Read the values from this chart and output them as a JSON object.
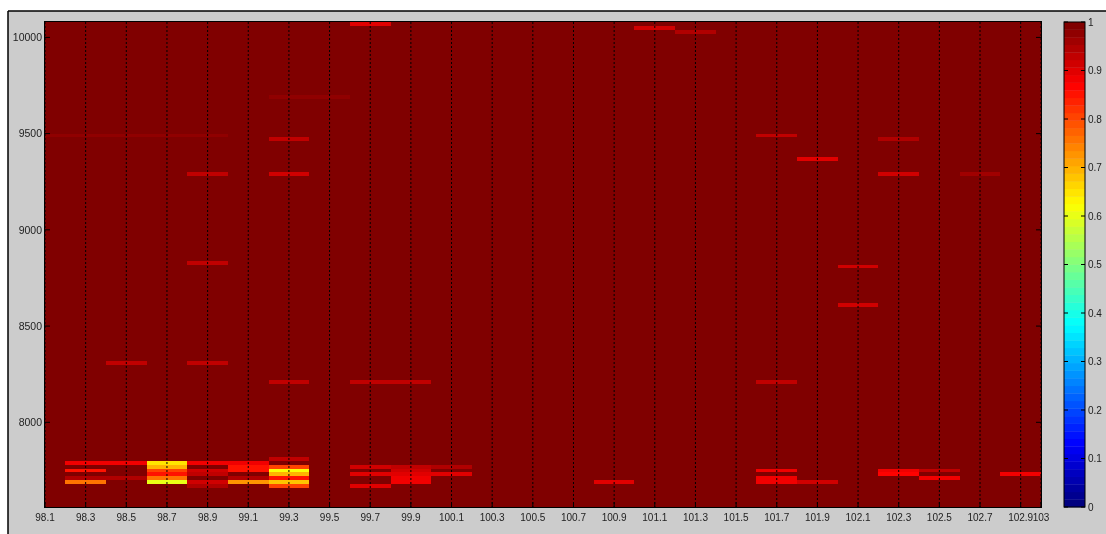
{
  "chart_data": {
    "type": "heatmap",
    "x": [
      98.1,
      98.3,
      98.5,
      98.7,
      98.9,
      99.1,
      99.3,
      99.5,
      99.7,
      99.9,
      100.1,
      100.3,
      100.5,
      100.7,
      100.9,
      101.1,
      101.3,
      101.5,
      101.7,
      101.9,
      102.1,
      102.3,
      102.5,
      102.7,
      102.9
    ],
    "xlim": [
      98.1,
      103
    ],
    "xticks": [
      98.1,
      98.3,
      98.5,
      98.7,
      98.9,
      99.1,
      99.3,
      99.5,
      99.7,
      99.9,
      100.1,
      100.3,
      100.5,
      100.7,
      100.9,
      101.1,
      101.3,
      101.5,
      101.7,
      101.9,
      102.1,
      102.3,
      102.5,
      102.7,
      102.9,
      103
    ],
    "ylim": [
      7560,
      10080
    ],
    "yticks": [
      8000,
      8500,
      9000,
      9500,
      10000
    ],
    "grid": "x",
    "clim": [
      0,
      1
    ],
    "cticks": [
      0,
      0.1,
      0.2,
      0.3,
      0.4,
      0.5,
      0.6,
      0.7,
      0.8,
      0.9,
      1
    ],
    "cells": [
      [
        1,
        1,
        1,
        1,
        1,
        1,
        1,
        1,
        0.9,
        1,
        1,
        1,
        1,
        1,
        1,
        1,
        1,
        1,
        1,
        1,
        1,
        1,
        1,
        1,
        1
      ],
      [
        1,
        1,
        1,
        1,
        1,
        1,
        1,
        1,
        1,
        1,
        1,
        1,
        1,
        1,
        1,
        0.92,
        1,
        1,
        1,
        1,
        1,
        1,
        1,
        1,
        1
      ],
      [
        1,
        1,
        1,
        1,
        1,
        1,
        1,
        1,
        1,
        1,
        1,
        1,
        1,
        1,
        1,
        1,
        0.95,
        1,
        1,
        1,
        1,
        1,
        1,
        1,
        1
      ],
      [
        1,
        1,
        1,
        1,
        1,
        1,
        1,
        1,
        1,
        1,
        1,
        1,
        1,
        1,
        1,
        1,
        1,
        1,
        1,
        1,
        1,
        1,
        1,
        1,
        1
      ],
      [
        1,
        1,
        1,
        1,
        1,
        1,
        1,
        1,
        1,
        1,
        1,
        1,
        1,
        1,
        1,
        1,
        1,
        1,
        1,
        1,
        1,
        1,
        1,
        1,
        1
      ],
      [
        1,
        1,
        1,
        1,
        1,
        1,
        1,
        1,
        1,
        1,
        1,
        1,
        1,
        1,
        1,
        1,
        1,
        1,
        1,
        1,
        1,
        1,
        1,
        1,
        1
      ],
      [
        1,
        1,
        1,
        1,
        1,
        1,
        1,
        1,
        1,
        1,
        1,
        1,
        1,
        1,
        1,
        1,
        1,
        1,
        1,
        1,
        1,
        1,
        1,
        1,
        1
      ],
      [
        1,
        1,
        1,
        1,
        1,
        1,
        1,
        1,
        1,
        1,
        1,
        1,
        1,
        1,
        1,
        1,
        1,
        1,
        1,
        1,
        1,
        1,
        1,
        1,
        1
      ],
      [
        1,
        1,
        1,
        1,
        1,
        1,
        1,
        1,
        1,
        1,
        1,
        1,
        1,
        1,
        1,
        1,
        1,
        1,
        1,
        1,
        1,
        1,
        1,
        1,
        1
      ],
      [
        1,
        1,
        1,
        1,
        1,
        1,
        1,
        1,
        1,
        1,
        1,
        1,
        1,
        1,
        1,
        1,
        1,
        1,
        1,
        1,
        1,
        1,
        1,
        1,
        1
      ],
      [
        1,
        1,
        1,
        1,
        1,
        1,
        1,
        1,
        1,
        1,
        1,
        1,
        1,
        1,
        1,
        1,
        1,
        1,
        1,
        1,
        1,
        1,
        1,
        1,
        1
      ],
      [
        1,
        1,
        1,
        1,
        1,
        1,
        1,
        1,
        1,
        1,
        1,
        1,
        1,
        1,
        1,
        1,
        1,
        1,
        1,
        1,
        1,
        1,
        1,
        1,
        1
      ],
      [
        1,
        1,
        1,
        1,
        1,
        1,
        1,
        1,
        1,
        1,
        1,
        1,
        1,
        1,
        1,
        1,
        1,
        1,
        1,
        1,
        1,
        1,
        1,
        1,
        1
      ],
      [
        1,
        1,
        1,
        1,
        1,
        1,
        1,
        1,
        1,
        1,
        1,
        1,
        1,
        1,
        1,
        1,
        1,
        1,
        1,
        1,
        1,
        1,
        1,
        1,
        1
      ],
      [
        1,
        1,
        1,
        1,
        1,
        1,
        1,
        1,
        1,
        1,
        1,
        1,
        1,
        1,
        1,
        1,
        1,
        1,
        1,
        1,
        1,
        1,
        1,
        1,
        1
      ],
      [
        1,
        1,
        1,
        1,
        1,
        1,
        1,
        1,
        1,
        1,
        1,
        1,
        1,
        1,
        1,
        1,
        1,
        1,
        1,
        1,
        1,
        1,
        1,
        1,
        1
      ],
      [
        1,
        1,
        1,
        1,
        1,
        1,
        1,
        1,
        1,
        1,
        1,
        1,
        1,
        1,
        1,
        1,
        1,
        1,
        1,
        1,
        1,
        1,
        1,
        1,
        1
      ],
      [
        1,
        1,
        1,
        1,
        1,
        1,
        1,
        1,
        1,
        1,
        1,
        1,
        1,
        1,
        1,
        1,
        1,
        1,
        1,
        1,
        1,
        1,
        1,
        1,
        1
      ],
      [
        1,
        1,
        1,
        1,
        1,
        1,
        1,
        1,
        1,
        1,
        1,
        1,
        1,
        1,
        1,
        1,
        1,
        1,
        1,
        1,
        1,
        1,
        1,
        1,
        1
      ],
      [
        1,
        1,
        1,
        1,
        1,
        1,
        0.97,
        0.97,
        1,
        1,
        1,
        1,
        1,
        1,
        1,
        1,
        1,
        1,
        1,
        1,
        1,
        1,
        1,
        1,
        1
      ],
      [
        1,
        1,
        1,
        1,
        1,
        1,
        1,
        1,
        1,
        1,
        1,
        1,
        1,
        1,
        1,
        1,
        1,
        1,
        1,
        1,
        1,
        1,
        1,
        1,
        1
      ],
      [
        1,
        1,
        1,
        1,
        1,
        1,
        1,
        1,
        1,
        1,
        1,
        1,
        1,
        1,
        1,
        1,
        1,
        1,
        1,
        1,
        1,
        1,
        1,
        1,
        1
      ],
      [
        1,
        1,
        1,
        1,
        1,
        1,
        1,
        1,
        1,
        1,
        1,
        1,
        1,
        1,
        1,
        1,
        1,
        1,
        1,
        1,
        1,
        1,
        1,
        1,
        1
      ],
      [
        1,
        1,
        1,
        1,
        1,
        1,
        1,
        1,
        1,
        1,
        1,
        1,
        1,
        1,
        1,
        1,
        1,
        1,
        1,
        1,
        1,
        1,
        1,
        1,
        1
      ],
      [
        1,
        1,
        1,
        1,
        1,
        1,
        1,
        1,
        1,
        1,
        1,
        1,
        1,
        1,
        1,
        1,
        1,
        1,
        1,
        1,
        1,
        1,
        1,
        1,
        1
      ],
      [
        1,
        1,
        1,
        1,
        1,
        1,
        1,
        1,
        1,
        1,
        1,
        1,
        1,
        1,
        1,
        1,
        1,
        1,
        1,
        1,
        1,
        1,
        1,
        1,
        1
      ],
      [
        1,
        1,
        1,
        1,
        1,
        1,
        1,
        1,
        1,
        1,
        1,
        1,
        1,
        1,
        1,
        1,
        1,
        1,
        1,
        1,
        1,
        1,
        1,
        1,
        1
      ],
      [
        1,
        1,
        1,
        1,
        1,
        1,
        1,
        1,
        1,
        1,
        1,
        1,
        1,
        1,
        1,
        1,
        1,
        1,
        1,
        1,
        1,
        1,
        1,
        1,
        1
      ],
      [
        1,
        1,
        1,
        1,
        1,
        1,
        1,
        1,
        1,
        1,
        1,
        1,
        1,
        1,
        1,
        1,
        1,
        1,
        1,
        1,
        1,
        1,
        1,
        1,
        1
      ],
      [
        0.97,
        0.97,
        0.97,
        0.97,
        0.97,
        1,
        1,
        1,
        1,
        1,
        1,
        1,
        1,
        1,
        1,
        1,
        1,
        1,
        0.93,
        1,
        1,
        1,
        1,
        1,
        1
      ],
      [
        1,
        1,
        1,
        1,
        1,
        1,
        0.93,
        1,
        1,
        1,
        1,
        1,
        1,
        1,
        1,
        1,
        1,
        1,
        1,
        1,
        1,
        0.95,
        1,
        1,
        1
      ],
      [
        1,
        1,
        1,
        1,
        1,
        1,
        1,
        1,
        1,
        1,
        1,
        1,
        1,
        1,
        1,
        1,
        1,
        1,
        1,
        1,
        1,
        1,
        1,
        1,
        1
      ],
      [
        1,
        1,
        1,
        1,
        1,
        1,
        1,
        1,
        1,
        1,
        1,
        1,
        1,
        1,
        1,
        1,
        1,
        1,
        1,
        1,
        1,
        1,
        1,
        1,
        1
      ],
      [
        1,
        1,
        1,
        1,
        1,
        1,
        1,
        1,
        1,
        1,
        1,
        1,
        1,
        1,
        1,
        1,
        1,
        1,
        1,
        1,
        1,
        1,
        1,
        1,
        1
      ],
      [
        1,
        1,
        1,
        1,
        1,
        1,
        1,
        1,
        1,
        1,
        1,
        1,
        1,
        1,
        1,
        1,
        1,
        1,
        1,
        1,
        1,
        1,
        1,
        1,
        1
      ],
      [
        1,
        1,
        1,
        1,
        1,
        1,
        1,
        1,
        1,
        1,
        1,
        1,
        1,
        1,
        1,
        1,
        1,
        1,
        1,
        0.9,
        1,
        1,
        1,
        1,
        1
      ],
      [
        1,
        1,
        1,
        1,
        1,
        1,
        1,
        1,
        1,
        1,
        1,
        1,
        1,
        1,
        1,
        1,
        1,
        1,
        1,
        1,
        1,
        1,
        1,
        1,
        1
      ],
      [
        1,
        1,
        1,
        1,
        1,
        1,
        1,
        1,
        1,
        1,
        1,
        1,
        1,
        1,
        1,
        1,
        1,
        1,
        1,
        1,
        1,
        1,
        1,
        1,
        1
      ],
      [
        1,
        1,
        1,
        1,
        1,
        1,
        1,
        1,
        1,
        1,
        1,
        1,
        1,
        1,
        1,
        1,
        1,
        1,
        1,
        1,
        1,
        1,
        1,
        1,
        1
      ],
      [
        1,
        1,
        1,
        1,
        0.93,
        1,
        0.92,
        1,
        1,
        1,
        1,
        1,
        1,
        1,
        1,
        1,
        1,
        1,
        1,
        1,
        1,
        0.92,
        1,
        0.96,
        1
      ],
      [
        1,
        1,
        1,
        1,
        1,
        1,
        1,
        1,
        1,
        1,
        1,
        1,
        1,
        1,
        1,
        1,
        1,
        1,
        1,
        1,
        1,
        1,
        1,
        1,
        1
      ],
      [
        1,
        1,
        1,
        1,
        1,
        1,
        1,
        1,
        1,
        1,
        1,
        1,
        1,
        1,
        1,
        1,
        1,
        1,
        1,
        1,
        1,
        1,
        1,
        1,
        1
      ],
      [
        1,
        1,
        1,
        1,
        1,
        1,
        1,
        1,
        1,
        1,
        1,
        1,
        1,
        1,
        1,
        1,
        1,
        1,
        1,
        1,
        1,
        1,
        1,
        1,
        1
      ],
      [
        1,
        1,
        1,
        1,
        1,
        1,
        1,
        1,
        1,
        1,
        1,
        1,
        1,
        1,
        1,
        1,
        1,
        1,
        1,
        1,
        1,
        1,
        1,
        1,
        1
      ],
      [
        1,
        1,
        1,
        1,
        1,
        1,
        1,
        1,
        1,
        1,
        1,
        1,
        1,
        1,
        1,
        1,
        1,
        1,
        1,
        1,
        1,
        1,
        1,
        1,
        1
      ],
      [
        1,
        1,
        1,
        1,
        1,
        1,
        1,
        1,
        1,
        1,
        1,
        1,
        1,
        1,
        1,
        1,
        1,
        1,
        1,
        1,
        1,
        1,
        1,
        1,
        1
      ],
      [
        1,
        1,
        1,
        1,
        1,
        1,
        1,
        1,
        1,
        1,
        1,
        1,
        1,
        1,
        1,
        1,
        1,
        1,
        1,
        1,
        1,
        1,
        1,
        1,
        1
      ],
      [
        1,
        1,
        1,
        1,
        1,
        1,
        1,
        1,
        1,
        1,
        1,
        1,
        1,
        1,
        1,
        1,
        1,
        1,
        1,
        1,
        1,
        1,
        1,
        1,
        1
      ],
      [
        1,
        1,
        1,
        1,
        1,
        1,
        1,
        1,
        1,
        1,
        1,
        1,
        1,
        1,
        1,
        1,
        1,
        1,
        1,
        1,
        1,
        1,
        1,
        1,
        1
      ],
      [
        1,
        1,
        1,
        1,
        1,
        1,
        1,
        1,
        1,
        1,
        1,
        1,
        1,
        1,
        1,
        1,
        1,
        1,
        1,
        1,
        1,
        1,
        1,
        1,
        1
      ],
      [
        1,
        1,
        1,
        1,
        1,
        1,
        1,
        1,
        1,
        1,
        1,
        1,
        1,
        1,
        1,
        1,
        1,
        1,
        1,
        1,
        1,
        1,
        1,
        1,
        1
      ],
      [
        1,
        1,
        1,
        1,
        1,
        1,
        1,
        1,
        1,
        1,
        1,
        1,
        1,
        1,
        1,
        1,
        1,
        1,
        1,
        1,
        1,
        1,
        1,
        1,
        1
      ],
      [
        1,
        1,
        1,
        1,
        1,
        1,
        1,
        1,
        1,
        1,
        1,
        1,
        1,
        1,
        1,
        1,
        1,
        1,
        1,
        1,
        1,
        1,
        1,
        1,
        1
      ],
      [
        1,
        1,
        1,
        1,
        1,
        1,
        1,
        1,
        1,
        1,
        1,
        1,
        1,
        1,
        1,
        1,
        1,
        1,
        1,
        1,
        1,
        1,
        1,
        1,
        1
      ],
      [
        1,
        1,
        1,
        1,
        1,
        1,
        1,
        1,
        1,
        1,
        1,
        1,
        1,
        1,
        1,
        1,
        1,
        1,
        1,
        1,
        1,
        1,
        1,
        1,
        1
      ],
      [
        1,
        1,
        1,
        1,
        1,
        1,
        1,
        1,
        1,
        1,
        1,
        1,
        1,
        1,
        1,
        1,
        1,
        1,
        1,
        1,
        1,
        1,
        1,
        1,
        1
      ],
      [
        1,
        1,
        1,
        1,
        1,
        1,
        1,
        1,
        1,
        1,
        1,
        1,
        1,
        1,
        1,
        1,
        1,
        1,
        1,
        1,
        1,
        1,
        1,
        1,
        1
      ],
      [
        1,
        1,
        1,
        1,
        1,
        1,
        1,
        1,
        1,
        1,
        1,
        1,
        1,
        1,
        1,
        1,
        1,
        1,
        1,
        1,
        1,
        1,
        1,
        1,
        1
      ],
      [
        1,
        1,
        1,
        1,
        1,
        1,
        1,
        1,
        1,
        1,
        1,
        1,
        1,
        1,
        1,
        1,
        1,
        1,
        1,
        1,
        1,
        1,
        1,
        1,
        1
      ],
      [
        1,
        1,
        1,
        1,
        1,
        1,
        1,
        1,
        1,
        1,
        1,
        1,
        1,
        1,
        1,
        1,
        1,
        1,
        1,
        1,
        1,
        1,
        1,
        1,
        1
      ],
      [
        1,
        1,
        1,
        1,
        1,
        1,
        1,
        1,
        1,
        1,
        1,
        1,
        1,
        1,
        1,
        1,
        1,
        1,
        1,
        1,
        1,
        1,
        1,
        1,
        1
      ],
      [
        1,
        1,
        1,
        1,
        1,
        1,
        1,
        1,
        1,
        1,
        1,
        1,
        1,
        1,
        1,
        1,
        1,
        1,
        1,
        1,
        1,
        1,
        1,
        1,
        1
      ],
      [
        1,
        1,
        1,
        1,
        0.93,
        1,
        1,
        1,
        1,
        1,
        1,
        1,
        1,
        1,
        1,
        1,
        1,
        1,
        1,
        1,
        1,
        1,
        1,
        1,
        1
      ],
      [
        1,
        1,
        1,
        1,
        1,
        1,
        1,
        1,
        1,
        1,
        1,
        1,
        1,
        1,
        1,
        1,
        1,
        1,
        1,
        1,
        0.92,
        1,
        1,
        1,
        1
      ],
      [
        1,
        1,
        1,
        1,
        1,
        1,
        1,
        1,
        1,
        1,
        1,
        1,
        1,
        1,
        1,
        1,
        1,
        1,
        1,
        1,
        1,
        1,
        1,
        1,
        1
      ],
      [
        1,
        1,
        1,
        1,
        1,
        1,
        1,
        1,
        1,
        1,
        1,
        1,
        1,
        1,
        1,
        1,
        1,
        1,
        1,
        1,
        1,
        1,
        1,
        1,
        1
      ],
      [
        1,
        1,
        1,
        1,
        1,
        1,
        1,
        1,
        1,
        1,
        1,
        1,
        1,
        1,
        1,
        1,
        1,
        1,
        1,
        1,
        1,
        1,
        1,
        1,
        1
      ],
      [
        1,
        1,
        1,
        1,
        1,
        1,
        1,
        1,
        1,
        1,
        1,
        1,
        1,
        1,
        1,
        1,
        1,
        1,
        1,
        1,
        1,
        1,
        1,
        1,
        1
      ],
      [
        1,
        1,
        1,
        1,
        1,
        1,
        1,
        1,
        1,
        1,
        1,
        1,
        1,
        1,
        1,
        1,
        1,
        1,
        1,
        1,
        1,
        1,
        1,
        1,
        1
      ],
      [
        1,
        1,
        1,
        1,
        1,
        1,
        1,
        1,
        1,
        1,
        1,
        1,
        1,
        1,
        1,
        1,
        1,
        1,
        1,
        1,
        1,
        1,
        1,
        1,
        1
      ],
      [
        1,
        1,
        1,
        1,
        1,
        1,
        1,
        1,
        1,
        1,
        1,
        1,
        1,
        1,
        1,
        1,
        1,
        1,
        1,
        1,
        1,
        1,
        1,
        1,
        1
      ],
      [
        1,
        1,
        1,
        1,
        1,
        1,
        1,
        1,
        1,
        1,
        1,
        1,
        1,
        1,
        1,
        1,
        1,
        1,
        1,
        1,
        1,
        1,
        1,
        1,
        1
      ],
      [
        1,
        1,
        1,
        1,
        1,
        1,
        1,
        1,
        1,
        1,
        1,
        1,
        1,
        1,
        1,
        1,
        1,
        1,
        1,
        1,
        1,
        1,
        1,
        1,
        1
      ],
      [
        1,
        1,
        1,
        1,
        1,
        1,
        1,
        1,
        1,
        1,
        1,
        1,
        1,
        1,
        1,
        1,
        1,
        1,
        1,
        1,
        0.92,
        1,
        1,
        1,
        1
      ],
      [
        1,
        1,
        1,
        1,
        1,
        1,
        1,
        1,
        1,
        1,
        1,
        1,
        1,
        1,
        1,
        1,
        1,
        1,
        1,
        1,
        1,
        1,
        1,
        1,
        1
      ],
      [
        1,
        1,
        1,
        1,
        1,
        1,
        1,
        1,
        1,
        1,
        1,
        1,
        1,
        1,
        1,
        1,
        1,
        1,
        1,
        1,
        1,
        1,
        1,
        1,
        1
      ],
      [
        1,
        1,
        1,
        1,
        1,
        1,
        1,
        1,
        1,
        1,
        1,
        1,
        1,
        1,
        1,
        1,
        1,
        1,
        1,
        1,
        1,
        1,
        1,
        1,
        1
      ],
      [
        1,
        1,
        1,
        1,
        1,
        1,
        1,
        1,
        1,
        1,
        1,
        1,
        1,
        1,
        1,
        1,
        1,
        1,
        1,
        1,
        1,
        1,
        1,
        1,
        1
      ],
      [
        1,
        1,
        1,
        1,
        1,
        1,
        1,
        1,
        1,
        1,
        1,
        1,
        1,
        1,
        1,
        1,
        1,
        1,
        1,
        1,
        1,
        1,
        1,
        1,
        1
      ],
      [
        1,
        1,
        1,
        1,
        1,
        1,
        1,
        1,
        1,
        1,
        1,
        1,
        1,
        1,
        1,
        1,
        1,
        1,
        1,
        1,
        1,
        1,
        1,
        1,
        1
      ],
      [
        1,
        1,
        1,
        1,
        1,
        1,
        1,
        1,
        1,
        1,
        1,
        1,
        1,
        1,
        1,
        1,
        1,
        1,
        1,
        1,
        1,
        1,
        1,
        1,
        1
      ],
      [
        1,
        1,
        1,
        1,
        1,
        1,
        1,
        1,
        1,
        1,
        1,
        1,
        1,
        1,
        1,
        1,
        1,
        1,
        1,
        1,
        1,
        1,
        1,
        1,
        1
      ],
      [
        1,
        1,
        1,
        1,
        1,
        1,
        1,
        1,
        1,
        1,
        1,
        1,
        1,
        1,
        1,
        1,
        1,
        1,
        1,
        1,
        1,
        1,
        1,
        1,
        1
      ],
      [
        1,
        1,
        1,
        1,
        1,
        1,
        1,
        1,
        1,
        1,
        1,
        1,
        1,
        1,
        1,
        1,
        1,
        1,
        1,
        1,
        1,
        1,
        1,
        1,
        1
      ],
      [
        1,
        1,
        1,
        1,
        1,
        1,
        1,
        1,
        1,
        1,
        1,
        1,
        1,
        1,
        1,
        1,
        1,
        1,
        1,
        1,
        1,
        1,
        1,
        1,
        1
      ],
      [
        1,
        1,
        1,
        1,
        1,
        1,
        1,
        1,
        1,
        1,
        1,
        1,
        1,
        1,
        1,
        1,
        1,
        1,
        1,
        1,
        1,
        1,
        1,
        1,
        1
      ],
      [
        1,
        1,
        1,
        1,
        1,
        1,
        1,
        1,
        1,
        1,
        1,
        1,
        1,
        1,
        1,
        1,
        1,
        1,
        1,
        1,
        1,
        1,
        1,
        1,
        1
      ],
      [
        1,
        1,
        1,
        1,
        1,
        1,
        1,
        1,
        1,
        1,
        1,
        1,
        1,
        1,
        1,
        1,
        1,
        1,
        1,
        1,
        1,
        1,
        1,
        1,
        1
      ],
      [
        1,
        1,
        0.93,
        1,
        0.93,
        1,
        1,
        1,
        1,
        1,
        1,
        1,
        1,
        1,
        1,
        1,
        1,
        1,
        1,
        1,
        1,
        1,
        1,
        1,
        1
      ],
      [
        1,
        1,
        1,
        1,
        1,
        1,
        1,
        1,
        1,
        1,
        1,
        1,
        1,
        1,
        1,
        1,
        1,
        1,
        1,
        1,
        1,
        1,
        1,
        1,
        1
      ],
      [
        1,
        1,
        1,
        1,
        1,
        1,
        1,
        1,
        1,
        1,
        1,
        1,
        1,
        1,
        1,
        1,
        1,
        1,
        1,
        1,
        1,
        1,
        1,
        1,
        1
      ],
      [
        1,
        1,
        1,
        1,
        1,
        1,
        1,
        1,
        1,
        1,
        1,
        1,
        1,
        1,
        1,
        1,
        1,
        1,
        1,
        1,
        1,
        1,
        1,
        1,
        1
      ],
      [
        1,
        1,
        1,
        1,
        1,
        1,
        1,
        1,
        1,
        1,
        1,
        1,
        1,
        1,
        1,
        1,
        1,
        1,
        1,
        1,
        1,
        1,
        1,
        1,
        1
      ],
      [
        1,
        1,
        1,
        1,
        1,
        1,
        0.93,
        1,
        0.93,
        0.93,
        1,
        1,
        1,
        1,
        1,
        1,
        1,
        1,
        0.93,
        1,
        1,
        1,
        1,
        1,
        1
      ],
      [
        1,
        1,
        1,
        1,
        1,
        1,
        1,
        1,
        1,
        1,
        1,
        1,
        1,
        1,
        1,
        1,
        1,
        1,
        1,
        1,
        1,
        1,
        1,
        1,
        1
      ],
      [
        1,
        1,
        1,
        1,
        1,
        1,
        1,
        1,
        1,
        1,
        1,
        1,
        1,
        1,
        1,
        1,
        1,
        1,
        1,
        1,
        1,
        1,
        1,
        1,
        1
      ],
      [
        1,
        1,
        1,
        1,
        1,
        1,
        1,
        1,
        1,
        1,
        1,
        1,
        1,
        1,
        1,
        1,
        1,
        1,
        1,
        1,
        1,
        1,
        1,
        1,
        1
      ],
      [
        1,
        1,
        1,
        1,
        1,
        1,
        1,
        1,
        1,
        1,
        1,
        1,
        1,
        1,
        1,
        1,
        1,
        1,
        1,
        1,
        1,
        1,
        1,
        1,
        1
      ],
      [
        1,
        1,
        1,
        1,
        1,
        1,
        1,
        1,
        1,
        1,
        1,
        1,
        1,
        1,
        1,
        1,
        1,
        1,
        1,
        1,
        1,
        1,
        1,
        1,
        1
      ],
      [
        1,
        1,
        1,
        1,
        1,
        1,
        1,
        1,
        1,
        1,
        1,
        1,
        1,
        1,
        1,
        1,
        1,
        1,
        1,
        1,
        1,
        1,
        1,
        1,
        1
      ],
      [
        1,
        1,
        1,
        1,
        1,
        1,
        1,
        1,
        1,
        1,
        1,
        1,
        1,
        1,
        1,
        1,
        1,
        1,
        1,
        1,
        1,
        1,
        1,
        1,
        1
      ],
      [
        1,
        1,
        1,
        1,
        1,
        1,
        1,
        1,
        1,
        1,
        1,
        1,
        1,
        1,
        1,
        1,
        1,
        1,
        1,
        1,
        1,
        1,
        1,
        1,
        1
      ],
      [
        1,
        1,
        1,
        1,
        1,
        1,
        1,
        1,
        1,
        1,
        1,
        1,
        1,
        1,
        1,
        1,
        1,
        1,
        1,
        1,
        1,
        1,
        1,
        1,
        1
      ],
      [
        1,
        1,
        1,
        1,
        1,
        1,
        1,
        1,
        1,
        1,
        1,
        1,
        1,
        1,
        1,
        1,
        1,
        1,
        1,
        1,
        1,
        1,
        1,
        1,
        1
      ],
      [
        1,
        1,
        1,
        1,
        1,
        1,
        1,
        1,
        1,
        1,
        1,
        1,
        1,
        1,
        1,
        1,
        1,
        1,
        1,
        1,
        1,
        1,
        1,
        1,
        1
      ],
      [
        1,
        1,
        1,
        1,
        1,
        1,
        1,
        1,
        1,
        1,
        1,
        1,
        1,
        1,
        1,
        1,
        1,
        1,
        1,
        1,
        1,
        1,
        1,
        1,
        1
      ],
      [
        1,
        1,
        1,
        1,
        1,
        1,
        1,
        1,
        1,
        1,
        1,
        1,
        1,
        1,
        1,
        1,
        1,
        1,
        1,
        1,
        1,
        1,
        1,
        1,
        1
      ],
      [
        1,
        1,
        1,
        1,
        1,
        1,
        1,
        1,
        1,
        1,
        1,
        1,
        1,
        1,
        1,
        1,
        1,
        1,
        1,
        1,
        1,
        1,
        1,
        1,
        1
      ],
      [
        1,
        1,
        1,
        1,
        1,
        1,
        1,
        1,
        1,
        1,
        1,
        1,
        1,
        1,
        1,
        1,
        1,
        1,
        1,
        1,
        1,
        1,
        1,
        1,
        1
      ],
      [
        1,
        1,
        1,
        1,
        1,
        1,
        1,
        1,
        1,
        1,
        1,
        1,
        1,
        1,
        1,
        1,
        1,
        1,
        1,
        1,
        1,
        1,
        1,
        1,
        1
      ],
      [
        1,
        1,
        1,
        1,
        1,
        1,
        1,
        1,
        1,
        1,
        1,
        1,
        1,
        1,
        1,
        1,
        1,
        1,
        1,
        1,
        1,
        1,
        1,
        1,
        1
      ],
      [
        1,
        1,
        1,
        1,
        1,
        1,
        1,
        1,
        1,
        1,
        1,
        1,
        1,
        1,
        1,
        1,
        1,
        1,
        1,
        1,
        1,
        1,
        1,
        1,
        1
      ],
      [
        1,
        1,
        1,
        1,
        1,
        1,
        1,
        1,
        1,
        1,
        1,
        1,
        1,
        1,
        1,
        1,
        1,
        1,
        1,
        1,
        1,
        1,
        1,
        1,
        1
      ],
      [
        1,
        1,
        1,
        1,
        1,
        1,
        0.93,
        1,
        1,
        1,
        1,
        1,
        1,
        1,
        1,
        1,
        1,
        1,
        1,
        1,
        1,
        1,
        1,
        1,
        1
      ],
      [
        1,
        0.88,
        0.88,
        0.65,
        0.88,
        0.88,
        1,
        1,
        1,
        1,
        1,
        1,
        1,
        1,
        1,
        1,
        1,
        1,
        1,
        1,
        1,
        1,
        1,
        1,
        1
      ],
      [
        1,
        1,
        1,
        0.7,
        1,
        0.85,
        0.8,
        1,
        0.92,
        0.93,
        0.95,
        1,
        1,
        1,
        1,
        1,
        1,
        1,
        1,
        1,
        1,
        1,
        1,
        1,
        1
      ],
      [
        1,
        0.85,
        1,
        0.8,
        0.92,
        0.85,
        0.62,
        1,
        1,
        0.92,
        1,
        1,
        1,
        1,
        1,
        1,
        1,
        1,
        0.88,
        1,
        1,
        0.88,
        0.93,
        1,
        1
      ],
      [
        1,
        1,
        1,
        0.85,
        0.93,
        1,
        0.7,
        1,
        0.9,
        0.9,
        0.9,
        1,
        1,
        1,
        1,
        1,
        1,
        1,
        1,
        1,
        1,
        0.87,
        1,
        1,
        0.88
      ],
      [
        1,
        0.95,
        0.95,
        0.75,
        1,
        0.95,
        0.85,
        1,
        1,
        0.88,
        1,
        1,
        1,
        1,
        1,
        1,
        1,
        1,
        0.88,
        1,
        1,
        1,
        0.88,
        1,
        1
      ],
      [
        1,
        0.75,
        1,
        0.6,
        0.92,
        0.72,
        0.68,
        1,
        1,
        0.88,
        1,
        1,
        1,
        1,
        0.9,
        1,
        1,
        1,
        0.88,
        0.92,
        1,
        1,
        1,
        1,
        1
      ],
      [
        1,
        1,
        1,
        1,
        0.95,
        1,
        0.8,
        1,
        0.9,
        1,
        1,
        1,
        1,
        1,
        1,
        1,
        1,
        1,
        1,
        1,
        1,
        1,
        1,
        1,
        1
      ],
      [
        1,
        1,
        1,
        1,
        1,
        1,
        1,
        1,
        1,
        1,
        1,
        1,
        1,
        1,
        1,
        1,
        1,
        1,
        1,
        1,
        1,
        1,
        1,
        1,
        1
      ],
      [
        1,
        1,
        1,
        1,
        1,
        1,
        1,
        1,
        1,
        1,
        1,
        1,
        1,
        1,
        1,
        1,
        1,
        1,
        1,
        1,
        1,
        1,
        1,
        1,
        1
      ],
      [
        1,
        1,
        1,
        1,
        1,
        1,
        1,
        1,
        1,
        1,
        1,
        1,
        1,
        1,
        1,
        1,
        1,
        1,
        1,
        1,
        1,
        1,
        1,
        1,
        1
      ],
      [
        1,
        1,
        1,
        1,
        1,
        1,
        1,
        1,
        1,
        1,
        1,
        1,
        1,
        1,
        1,
        1,
        1,
        1,
        1,
        1,
        1,
        1,
        1,
        1,
        1
      ],
      [
        1,
        1,
        1,
        1,
        1,
        1,
        1,
        1,
        1,
        1,
        1,
        1,
        1,
        1,
        1,
        1,
        1,
        1,
        1,
        1,
        1,
        1,
        1,
        1,
        1
      ]
    ]
  }
}
